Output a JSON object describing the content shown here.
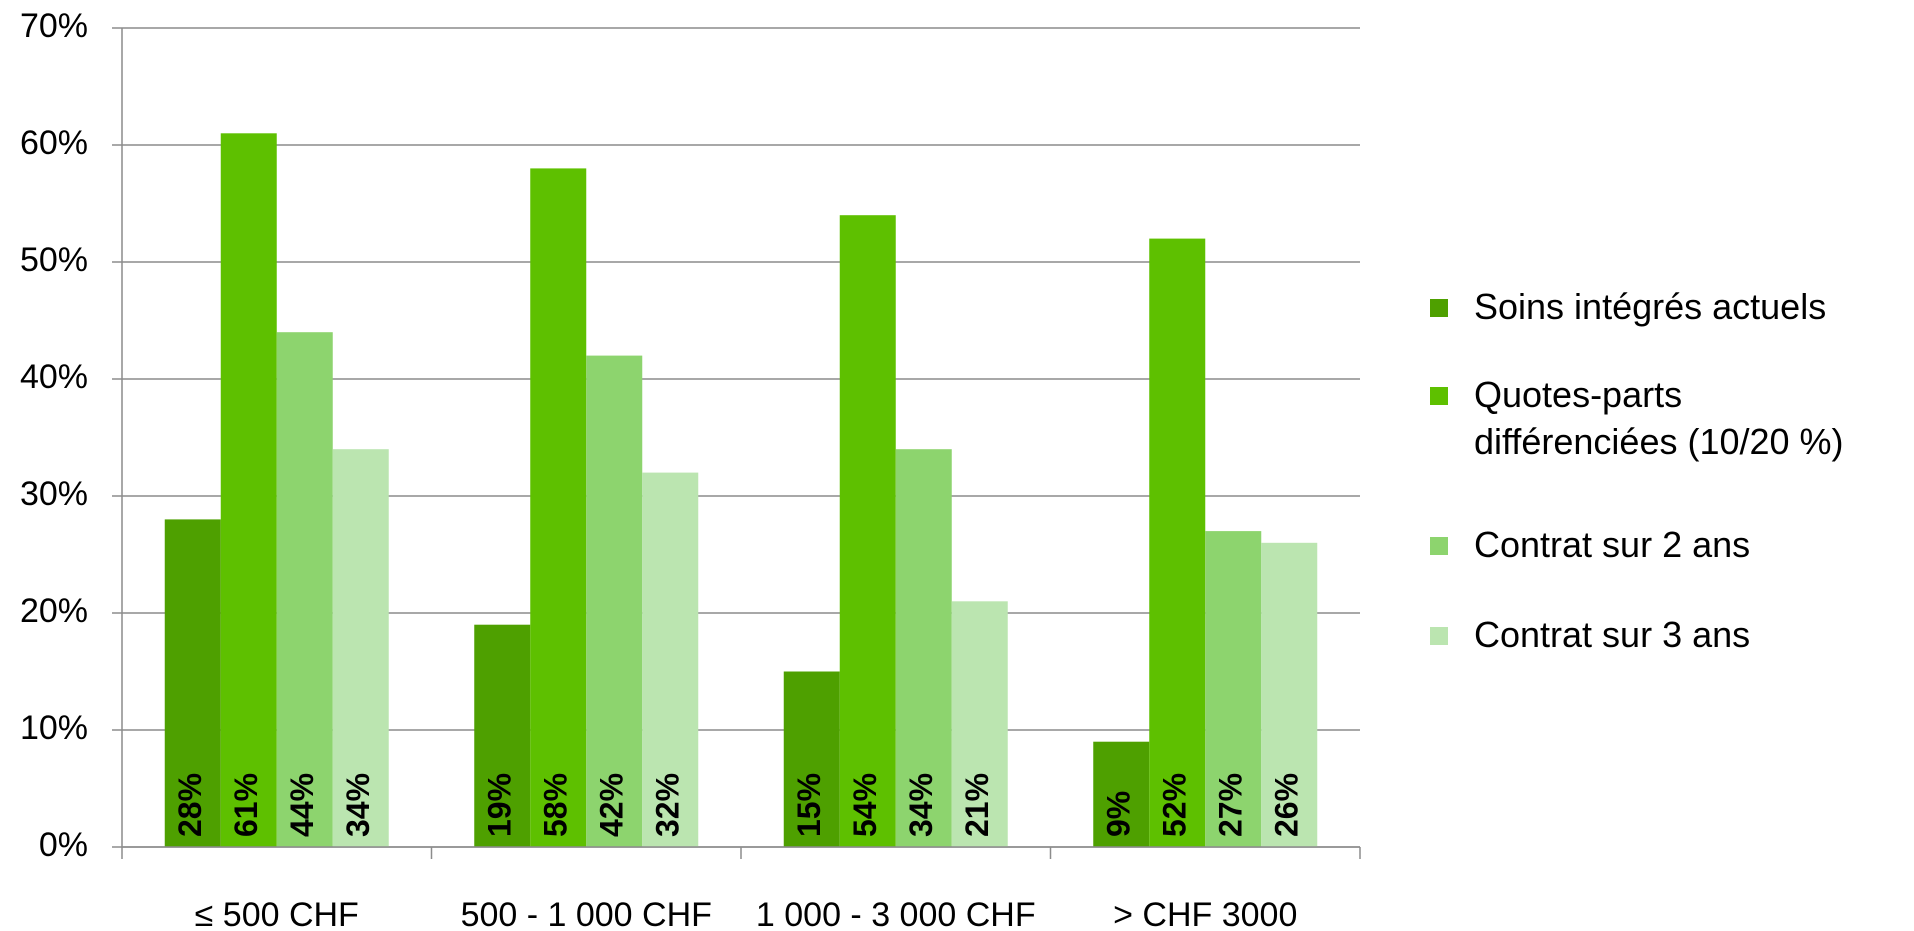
{
  "chart_data": {
    "type": "bar",
    "categories": [
      "≤ 500 CHF",
      "500 - 1 000 CHF",
      "1 000 - 3 000 CHF",
      "> CHF 3000"
    ],
    "series": [
      {
        "name": "Soins intégrés actuels",
        "color": "#4ea000",
        "values": [
          28,
          19,
          15,
          9
        ],
        "value_labels": [
          "28%",
          "19%",
          "15%",
          "9%"
        ]
      },
      {
        "name": "Quotes-parts\ndifférenciées  (10/20 %)",
        "color": "#5ec000",
        "values": [
          61,
          58,
          54,
          52
        ],
        "value_labels": [
          "61%",
          "58%",
          "54%",
          "52%"
        ]
      },
      {
        "name": "Contrat sur 2 ans",
        "color": "#8dd46e",
        "values": [
          44,
          42,
          34,
          27
        ],
        "value_labels": [
          "44%",
          "42%",
          "34%",
          "27%"
        ]
      },
      {
        "name": "Contrat sur 3 ans",
        "color": "#bbe5b0",
        "values": [
          34,
          32,
          21,
          26
        ],
        "value_labels": [
          "34%",
          "32%",
          "21%",
          "26%"
        ]
      }
    ],
    "ylim": [
      0,
      70
    ],
    "yticks": [
      {
        "value": 0,
        "label": "0%"
      },
      {
        "value": 10,
        "label": "10%"
      },
      {
        "value": 20,
        "label": "20%"
      },
      {
        "value": 30,
        "label": "30%"
      },
      {
        "value": 40,
        "label": "40%"
      },
      {
        "value": 50,
        "label": "50%"
      },
      {
        "value": 60,
        "label": "60%"
      },
      {
        "value": 70,
        "label": "70%"
      }
    ],
    "grid": true,
    "legend": "right"
  }
}
